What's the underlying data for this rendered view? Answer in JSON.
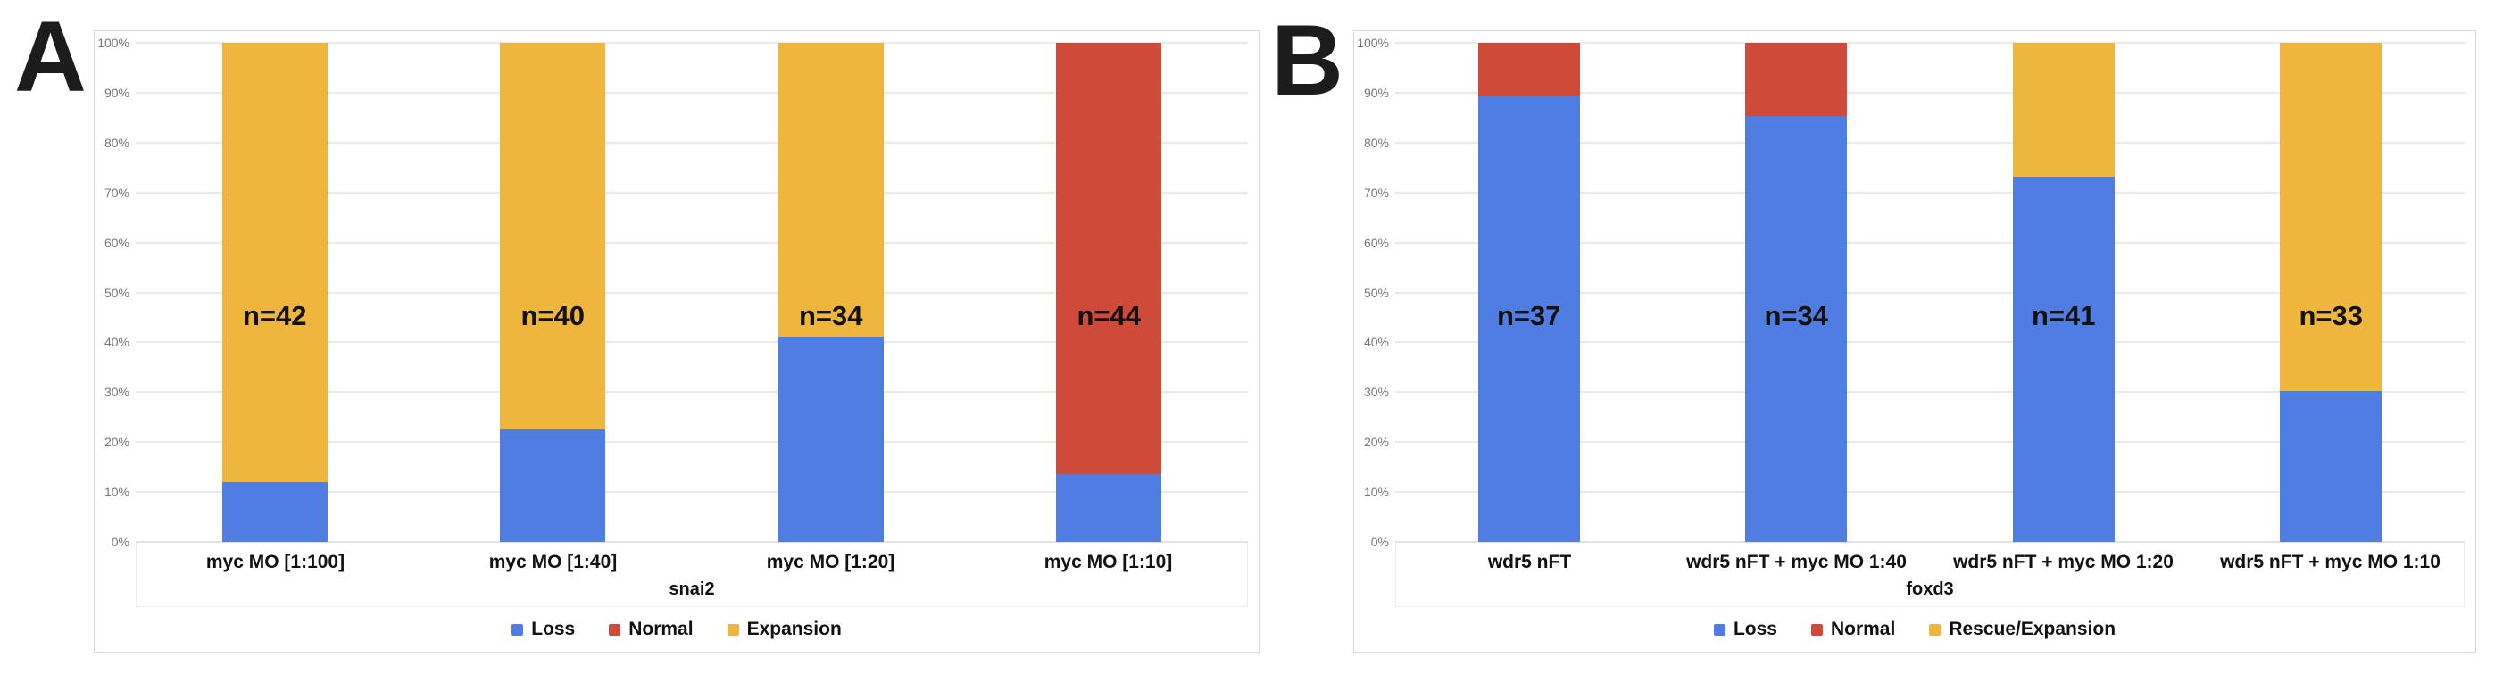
{
  "figure": {
    "panel_letters": [
      "A",
      "B"
    ]
  },
  "chart_data": [
    {
      "type": "bar",
      "stacked": true,
      "panel_label": "A",
      "title": "",
      "xlabel": "snai2",
      "ylabel": "",
      "ylim": [
        0,
        100
      ],
      "y_tick_step": 10,
      "y_tick_suffix": "%",
      "grid": true,
      "legend_position": "bottom",
      "categories": [
        "myc MO [1:100]",
        "myc MO [1:40]",
        "myc MO [1:20]",
        "myc MO [1:10]"
      ],
      "series": [
        {
          "name": "Loss",
          "color": "#4f7de2",
          "values": [
            11.9,
            22.5,
            41.2,
            13.6
          ]
        },
        {
          "name": "Normal",
          "color": "#cf4a38",
          "values": [
            0,
            0,
            0,
            86.4
          ]
        },
        {
          "name": "Expansion",
          "color": "#eeb63c",
          "values": [
            88.1,
            77.5,
            58.8,
            0
          ]
        }
      ],
      "bar_labels": [
        "n=42",
        "n=40",
        "n=34",
        "n=44"
      ]
    },
    {
      "type": "bar",
      "stacked": true,
      "panel_label": "B",
      "title": "",
      "xlabel": "foxd3",
      "ylabel": "",
      "ylim": [
        0,
        100
      ],
      "y_tick_step": 10,
      "y_tick_suffix": "%",
      "grid": true,
      "legend_position": "bottom",
      "categories": [
        "wdr5 nFT",
        "wdr5 nFT + myc MO 1:40",
        "wdr5 nFT + myc MO 1:20",
        "wdr5 nFT + myc MO 1:10"
      ],
      "series": [
        {
          "name": "Loss",
          "color": "#4f7de2",
          "values": [
            89.2,
            85.3,
            73.2,
            30.3
          ]
        },
        {
          "name": "Normal",
          "color": "#cf4a38",
          "values": [
            10.8,
            14.7,
            0,
            0
          ]
        },
        {
          "name": "Rescue/Expansion",
          "color": "#eeb63c",
          "values": [
            0,
            0,
            26.8,
            69.7
          ]
        }
      ],
      "bar_labels": [
        "n=37",
        "n=34",
        "n=41",
        "n=33"
      ]
    }
  ]
}
